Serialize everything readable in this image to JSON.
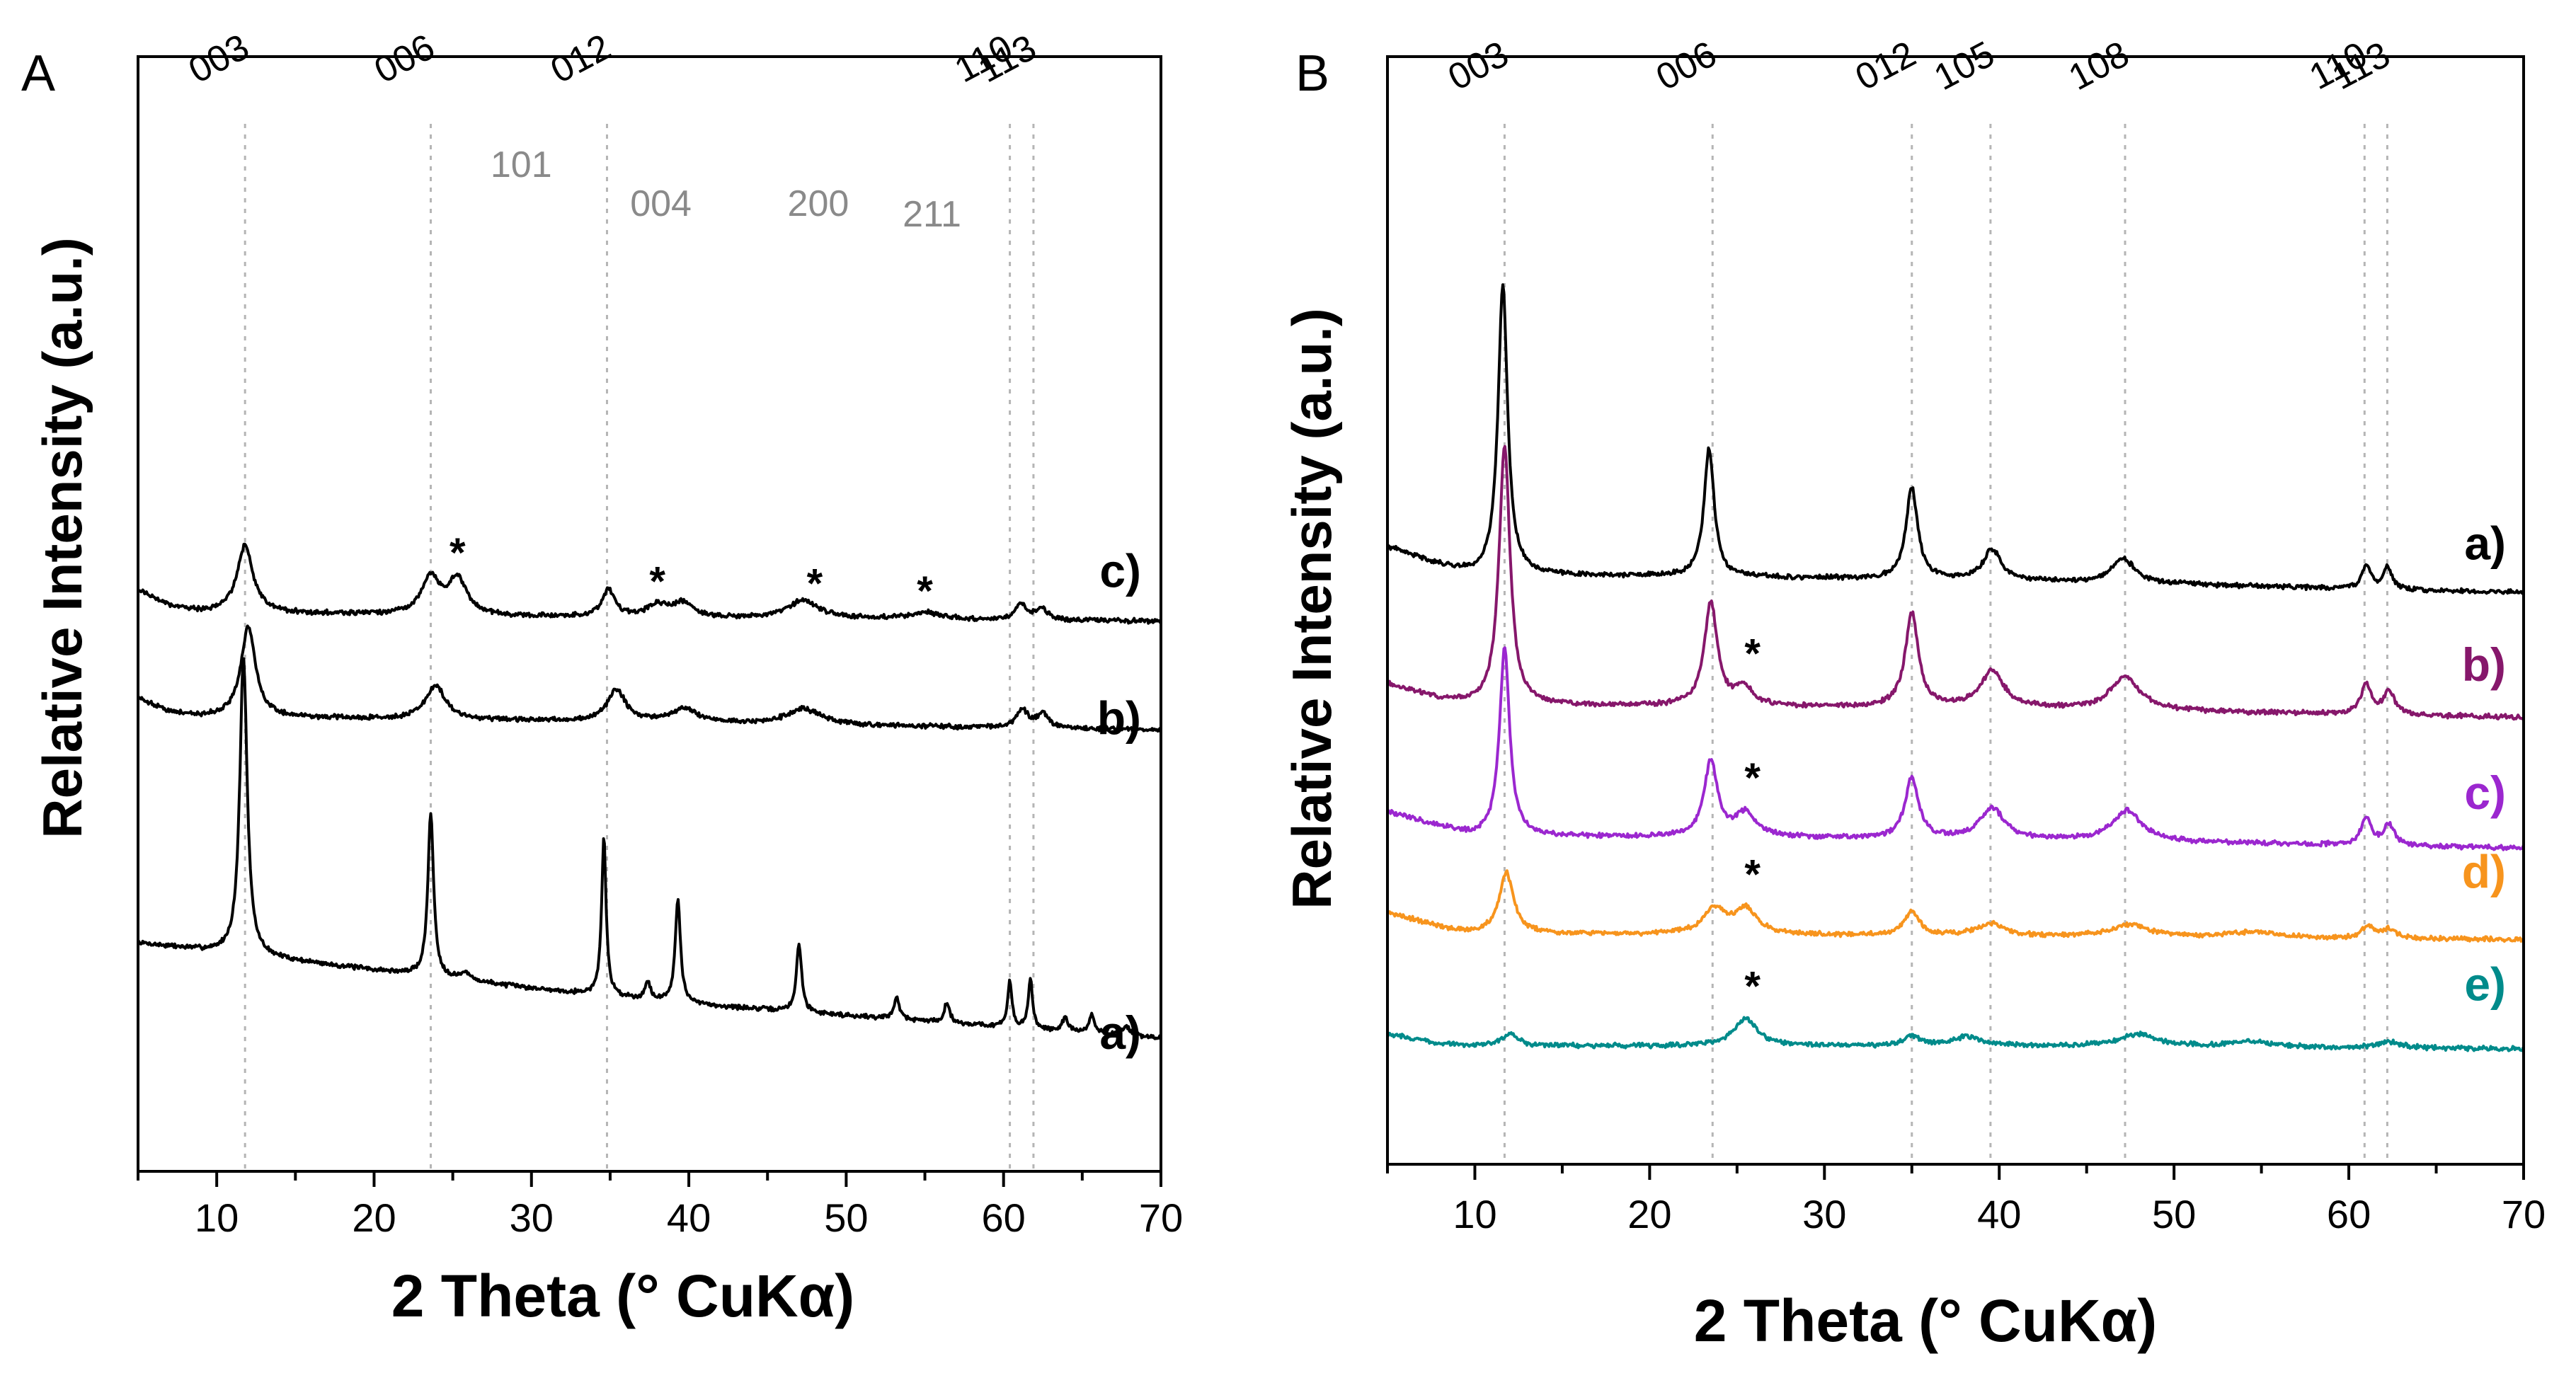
{
  "chart_data": [
    {
      "type": "line",
      "panel": "A",
      "xlabel": "2 Theta (° CuKα)",
      "ylabel": "Relative Intensity (a.u.)",
      "xlim": [
        5,
        70
      ],
      "xticks": [
        10,
        20,
        30,
        40,
        50,
        60,
        70
      ],
      "yticks": [],
      "grid": false,
      "reflections": [
        {
          "label": "003",
          "x": 11.8
        },
        {
          "label": "006",
          "x": 23.6
        },
        {
          "label": "012",
          "x": 34.8
        },
        {
          "label": "110",
          "x": 60.4
        },
        {
          "label": "113",
          "x": 61.9
        }
      ],
      "impurity_reflections": [
        {
          "label": "101",
          "x": 25.3
        },
        {
          "label": "004",
          "x": 38.0
        },
        {
          "label": "200",
          "x": 48.0
        },
        {
          "label": "211",
          "x": 55.0
        }
      ],
      "series": [
        {
          "name": "a)",
          "color": "#000000",
          "offset": 0.18,
          "background": [
            [
              5,
              0.0
            ],
            [
              10,
              -0.04
            ],
            [
              20,
              -0.12
            ],
            [
              30,
              -0.2
            ],
            [
              40,
              -0.27
            ],
            [
              50,
              -0.32
            ],
            [
              60,
              -0.37
            ],
            [
              70,
              -0.42
            ]
          ],
          "peaks": [
            {
              "x": 11.7,
              "h": 1.32,
              "w": 0.28
            },
            {
              "x": 23.6,
              "h": 0.72,
              "w": 0.22
            },
            {
              "x": 34.6,
              "h": 0.7,
              "w": 0.17
            },
            {
              "x": 39.3,
              "h": 0.46,
              "w": 0.2
            },
            {
              "x": 47.0,
              "h": 0.3,
              "w": 0.2
            },
            {
              "x": 53.2,
              "h": 0.1,
              "w": 0.2
            },
            {
              "x": 56.4,
              "h": 0.09,
              "w": 0.2
            },
            {
              "x": 60.4,
              "h": 0.2,
              "w": 0.16
            },
            {
              "x": 61.7,
              "h": 0.22,
              "w": 0.16
            },
            {
              "x": 63.9,
              "h": 0.06,
              "w": 0.2
            },
            {
              "x": 65.6,
              "h": 0.08,
              "w": 0.2
            },
            {
              "x": 67.8,
              "h": 0.04,
              "w": 0.3
            },
            {
              "x": 37.4,
              "h": 0.08,
              "w": 0.2
            },
            {
              "x": 25.8,
              "h": 0.03,
              "w": 0.4
            }
          ]
        },
        {
          "name": "b)",
          "color": "#000000",
          "offset": 1.18,
          "background": [
            [
              5,
              0.08
            ],
            [
              7,
              0.02
            ],
            [
              9,
              0.0
            ],
            [
              30,
              -0.02
            ],
            [
              50,
              -0.04
            ],
            [
              70,
              -0.06
            ]
          ],
          "peaks": [
            {
              "x": 12.0,
              "h": 0.4,
              "w": 0.55
            },
            {
              "x": 23.9,
              "h": 0.15,
              "w": 0.75
            },
            {
              "x": 35.4,
              "h": 0.14,
              "w": 0.7
            },
            {
              "x": 39.7,
              "h": 0.06,
              "w": 1.1
            },
            {
              "x": 47.3,
              "h": 0.07,
              "w": 1.3
            },
            {
              "x": 61.2,
              "h": 0.08,
              "w": 0.45
            },
            {
              "x": 62.5,
              "h": 0.06,
              "w": 0.45
            }
          ]
        },
        {
          "name": "c)",
          "color": "#000000",
          "offset": 1.62,
          "background": [
            [
              5,
              0.12
            ],
            [
              7,
              0.05
            ],
            [
              9,
              0.02
            ],
            [
              30,
              0.0
            ],
            [
              50,
              -0.01
            ],
            [
              70,
              -0.02
            ]
          ],
          "peaks": [
            {
              "x": 11.8,
              "h": 0.3,
              "w": 0.6
            },
            {
              "x": 23.6,
              "h": 0.16,
              "w": 0.7
            },
            {
              "x": 25.3,
              "h": 0.16,
              "w": 0.7
            },
            {
              "x": 34.9,
              "h": 0.12,
              "w": 0.5
            },
            {
              "x": 38.0,
              "h": 0.05,
              "w": 0.8
            },
            {
              "x": 39.6,
              "h": 0.06,
              "w": 0.8
            },
            {
              "x": 47.3,
              "h": 0.08,
              "w": 1.2
            },
            {
              "x": 55.0,
              "h": 0.03,
              "w": 1.2
            },
            {
              "x": 61.1,
              "h": 0.07,
              "w": 0.4
            },
            {
              "x": 62.4,
              "h": 0.05,
              "w": 0.5
            }
          ]
        }
      ]
    },
    {
      "type": "line",
      "panel": "B",
      "xlabel": "2 Theta (° CuKα)",
      "ylabel": "Relative Intensity (a.u.)",
      "xlim": [
        5,
        70
      ],
      "xticks": [
        10,
        20,
        30,
        40,
        50,
        60,
        70
      ],
      "yticks": [],
      "grid": false,
      "reflections": [
        {
          "label": "003",
          "x": 11.7
        },
        {
          "label": "006",
          "x": 23.6
        },
        {
          "label": "012",
          "x": 35.0
        },
        {
          "label": "105",
          "x": 39.5
        },
        {
          "label": "108",
          "x": 47.2
        },
        {
          "label": "110",
          "x": 60.9
        },
        {
          "label": "113",
          "x": 62.2
        }
      ],
      "impurity_reflections": [
        {
          "label": "*",
          "x": 25.4
        }
      ],
      "series": [
        {
          "name": "a)",
          "color": "#000000",
          "offset": 1.45,
          "background": [
            [
              5,
              0.09
            ],
            [
              8,
              0.03
            ],
            [
              10,
              0.0
            ],
            [
              40,
              -0.02
            ],
            [
              70,
              -0.06
            ]
          ],
          "peaks": [
            {
              "x": 11.6,
              "h": 0.95,
              "w": 0.33
            },
            {
              "x": 23.4,
              "h": 0.42,
              "w": 0.35
            },
            {
              "x": 35.0,
              "h": 0.3,
              "w": 0.4
            },
            {
              "x": 39.6,
              "h": 0.1,
              "w": 0.6
            },
            {
              "x": 47.1,
              "h": 0.08,
              "w": 0.8
            },
            {
              "x": 61.0,
              "h": 0.08,
              "w": 0.28
            },
            {
              "x": 62.2,
              "h": 0.07,
              "w": 0.3
            }
          ]
        },
        {
          "name": "b)",
          "color": "#86176b",
          "offset": 1.02,
          "background": [
            [
              5,
              0.07
            ],
            [
              8,
              0.02
            ],
            [
              10,
              0.0
            ],
            [
              40,
              -0.01
            ],
            [
              70,
              -0.04
            ]
          ],
          "peaks": [
            {
              "x": 11.7,
              "h": 0.85,
              "w": 0.38
            },
            {
              "x": 23.5,
              "h": 0.34,
              "w": 0.45
            },
            {
              "x": 25.4,
              "h": 0.06,
              "w": 0.6
            },
            {
              "x": 35.0,
              "h": 0.31,
              "w": 0.45
            },
            {
              "x": 39.6,
              "h": 0.12,
              "w": 0.8
            },
            {
              "x": 47.2,
              "h": 0.11,
              "w": 1.0
            },
            {
              "x": 61.0,
              "h": 0.1,
              "w": 0.35
            },
            {
              "x": 62.3,
              "h": 0.08,
              "w": 0.35
            }
          ]
        },
        {
          "name": "c)",
          "color": "#9b27cf",
          "offset": 0.59,
          "background": [
            [
              5,
              0.08
            ],
            [
              8,
              0.03
            ],
            [
              10,
              0.0
            ],
            [
              40,
              -0.01
            ],
            [
              70,
              -0.04
            ]
          ],
          "peaks": [
            {
              "x": 11.7,
              "h": 0.62,
              "w": 0.35
            },
            {
              "x": 23.5,
              "h": 0.25,
              "w": 0.45
            },
            {
              "x": 25.5,
              "h": 0.08,
              "w": 0.7
            },
            {
              "x": 35.0,
              "h": 0.2,
              "w": 0.45
            },
            {
              "x": 39.6,
              "h": 0.1,
              "w": 0.8
            },
            {
              "x": 47.3,
              "h": 0.1,
              "w": 1.0
            },
            {
              "x": 61.0,
              "h": 0.09,
              "w": 0.35
            },
            {
              "x": 62.3,
              "h": 0.07,
              "w": 0.35
            }
          ]
        },
        {
          "name": "d)",
          "color": "#f7941d",
          "offset": 0.27,
          "background": [
            [
              5,
              0.07
            ],
            [
              8,
              0.02
            ],
            [
              10,
              0.0
            ],
            [
              40,
              -0.01
            ],
            [
              70,
              -0.02
            ]
          ],
          "peaks": [
            {
              "x": 11.8,
              "h": 0.2,
              "w": 0.5
            },
            {
              "x": 23.7,
              "h": 0.08,
              "w": 0.8
            },
            {
              "x": 25.5,
              "h": 0.08,
              "w": 0.8
            },
            {
              "x": 35.0,
              "h": 0.08,
              "w": 0.5
            },
            {
              "x": 39.5,
              "h": 0.04,
              "w": 1.0
            },
            {
              "x": 47.5,
              "h": 0.04,
              "w": 1.3
            },
            {
              "x": 54.5,
              "h": 0.02,
              "w": 1.5
            },
            {
              "x": 61.1,
              "h": 0.04,
              "w": 0.4
            },
            {
              "x": 62.3,
              "h": 0.03,
              "w": 0.5
            }
          ]
        },
        {
          "name": "e)",
          "color": "#008b8b",
          "offset": -0.1,
          "background": [
            [
              5,
              0.04
            ],
            [
              8,
              0.01
            ],
            [
              10,
              0.0
            ],
            [
              40,
              0.0
            ],
            [
              70,
              -0.01
            ]
          ],
          "peaks": [
            {
              "x": 12.0,
              "h": 0.04,
              "w": 0.6
            },
            {
              "x": 25.5,
              "h": 0.09,
              "w": 0.8
            },
            {
              "x": 35.0,
              "h": 0.03,
              "w": 0.6
            },
            {
              "x": 38.2,
              "h": 0.03,
              "w": 1.0
            },
            {
              "x": 48.0,
              "h": 0.04,
              "w": 1.3
            },
            {
              "x": 54.5,
              "h": 0.02,
              "w": 1.5
            },
            {
              "x": 62.3,
              "h": 0.02,
              "w": 0.8
            }
          ]
        }
      ]
    }
  ]
}
